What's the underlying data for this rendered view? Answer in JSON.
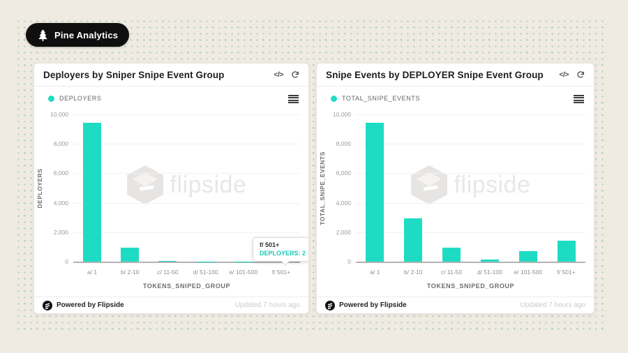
{
  "badge": {
    "label": "Pine Analytics",
    "icon": "pine-tree-icon"
  },
  "panels": [
    {
      "code_icon_label": "</>",
      "watermark": "flipside",
      "footer": {
        "powered": "Powered by Flipside",
        "updated": "Updated 7 hours ago"
      }
    },
    {
      "code_icon_label": "</>",
      "watermark": "flipside",
      "footer": {
        "powered": "Powered by Flipside",
        "updated": "Updated 7 hours ago"
      }
    }
  ],
  "chart_data": [
    {
      "type": "bar",
      "title": "Deployers by Sniper Snipe Event Group",
      "series": "DEPLOYERS",
      "categories": [
        "a/ 1",
        "b/ 2-10",
        "c/ 11-50",
        "d/ 51-100",
        "e/ 101-500",
        "f/ 501+"
      ],
      "values": [
        9450,
        950,
        60,
        10,
        5,
        2
      ],
      "xlabel": "TOKENS_SNIPED_GROUP",
      "ylabel": "DEPLOYERS",
      "ylim": [
        0,
        10000
      ],
      "yticks": [
        0,
        2000,
        4000,
        6000,
        8000,
        10000
      ],
      "grid": true,
      "legend_position": "top-left",
      "bar_color": "#1edcc4",
      "tooltip": {
        "title": "f/ 501+",
        "text": "DEPLOYERS: 2",
        "category": "f/ 501+",
        "value": 2
      }
    },
    {
      "type": "bar",
      "title": "Snipe Events by DEPLOYER Snipe Event Group",
      "series": "TOTAL_SNIPE_EVENTS",
      "categories": [
        "a/ 1",
        "b/ 2-10",
        "c/ 11-50",
        "d/ 51-100",
        "e/ 101-500",
        "f/ 501+"
      ],
      "values": [
        9450,
        2950,
        950,
        150,
        700,
        1400
      ],
      "xlabel": "TOKENS_SNIPED_GROUP",
      "ylabel": "TOTAL_SNIPE_EVENTS",
      "ylim": [
        0,
        10000
      ],
      "yticks": [
        0,
        2000,
        4000,
        6000,
        8000,
        10000
      ],
      "grid": true,
      "legend_position": "top-left",
      "bar_color": "#1edcc4"
    }
  ]
}
